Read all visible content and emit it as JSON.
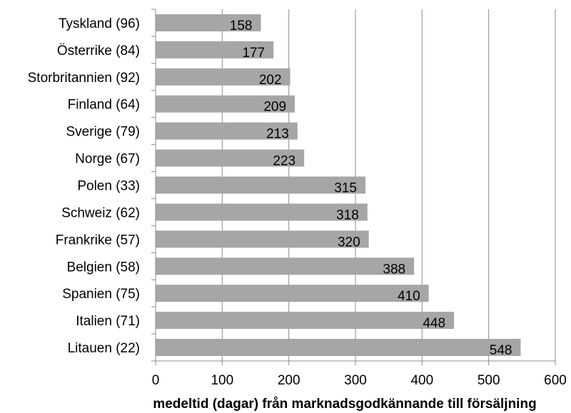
{
  "chart_data": {
    "type": "bar",
    "orientation": "horizontal",
    "categories": [
      "Tyskland (96)",
      "Österrike (84)",
      "Storbritannien (92)",
      "Finland (64)",
      "Sverige (79)",
      "Norge (67)",
      "Polen (33)",
      "Schweiz (62)",
      "Frankrike (57)",
      "Belgien (58)",
      "Spanien (75)",
      "Italien (71)",
      "Litauen (22)"
    ],
    "values": [
      158,
      177,
      202,
      209,
      213,
      223,
      315,
      318,
      320,
      388,
      410,
      448,
      548
    ],
    "data_labels": [
      "158",
      "177",
      "202",
      "209",
      "213",
      "223",
      "315",
      "318",
      "320",
      "388",
      "410",
      "448",
      "548"
    ],
    "xlabel": "medeltid (dagar) från marknadsgodkännande till försäljning",
    "xlim": [
      0,
      600
    ],
    "xticks": [
      0,
      100,
      200,
      300,
      400,
      500,
      600
    ],
    "xtick_labels": [
      "0",
      "100",
      "200",
      "300",
      "400",
      "500",
      "600"
    ],
    "grid": "vertical",
    "legend": "none",
    "colors": {
      "bar": "#a6a6a6",
      "grid": "#8c8c8c"
    }
  }
}
